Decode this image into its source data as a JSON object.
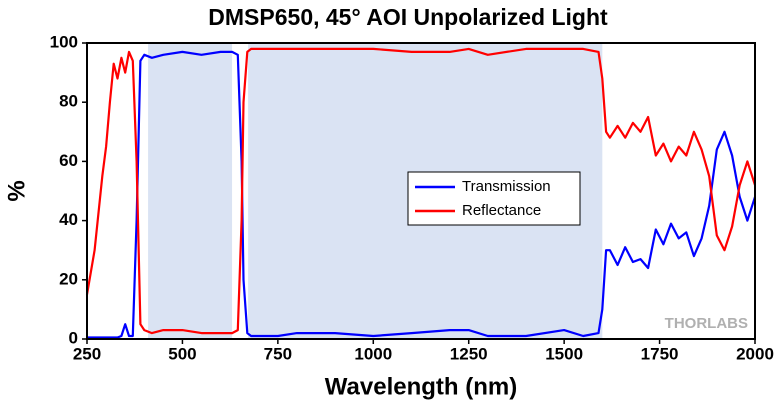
{
  "chart_data": {
    "type": "line",
    "title": "DMSP650, 45° AOI Unpolarized Light",
    "x_label": "Wavelength (nm)",
    "y_label": "%",
    "watermark": "THORLABS",
    "xlim": [
      250,
      2000
    ],
    "xticks": [
      250,
      500,
      750,
      1000,
      1250,
      1500,
      1750,
      2000
    ],
    "ylim": [
      0,
      100
    ],
    "yticks": [
      0,
      20,
      40,
      60,
      80,
      100
    ],
    "shaded_ranges": [
      [
        410,
        630
      ],
      [
        672,
        1600
      ]
    ],
    "shade_color": "#dae3f3",
    "x": [
      250,
      270,
      290,
      300,
      310,
      320,
      330,
      340,
      350,
      360,
      370,
      380,
      390,
      400,
      420,
      450,
      500,
      550,
      600,
      630,
      645,
      655,
      660,
      670,
      680,
      700,
      750,
      800,
      900,
      1000,
      1100,
      1200,
      1250,
      1300,
      1400,
      1500,
      1550,
      1590,
      1600,
      1610,
      1620,
      1640,
      1660,
      1680,
      1700,
      1720,
      1740,
      1760,
      1780,
      1800,
      1820,
      1840,
      1860,
      1880,
      1900,
      1920,
      1940,
      1960,
      1980,
      2000
    ],
    "series": [
      {
        "name": "Transmission",
        "color": "#0000ff",
        "values": [
          0.5,
          0.5,
          0.5,
          0.5,
          0.5,
          0.5,
          0.5,
          1,
          5,
          1,
          1,
          40,
          94,
          96,
          95,
          96,
          97,
          96,
          97,
          97,
          96,
          60,
          20,
          2,
          1,
          1,
          1,
          2,
          2,
          1,
          2,
          3,
          3,
          1,
          1,
          3,
          1,
          2,
          10,
          30,
          30,
          25,
          31,
          26,
          27,
          24,
          37,
          32,
          39,
          34,
          36,
          28,
          34,
          45,
          64,
          70,
          62,
          48,
          40,
          48
        ]
      },
      {
        "name": "Reflectance",
        "color": "#ff0000",
        "values": [
          15,
          30,
          55,
          65,
          80,
          93,
          88,
          95,
          90,
          97,
          94,
          60,
          5,
          3,
          2,
          3,
          3,
          2,
          2,
          2,
          3,
          40,
          80,
          97,
          98,
          98,
          98,
          98,
          98,
          98,
          97,
          97,
          98,
          96,
          98,
          98,
          98,
          97,
          88,
          70,
          68,
          72,
          68,
          73,
          70,
          75,
          62,
          66,
          60,
          65,
          62,
          70,
          64,
          55,
          35,
          30,
          38,
          52,
          60,
          52
        ]
      }
    ],
    "grid": false,
    "legend": "center"
  }
}
